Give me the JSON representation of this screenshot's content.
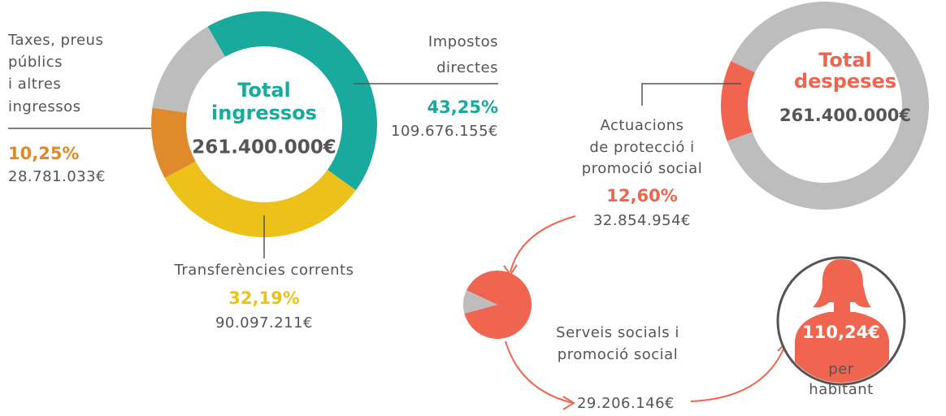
{
  "chart_data": [
    {
      "type": "pie",
      "donut": true,
      "title": [
        "Total",
        "ingressos"
      ],
      "total_label": "261.400.000€",
      "categories": [
        [
          "Impostos",
          "directes"
        ],
        [
          "Transferències corrents"
        ],
        [
          "Taxes, preus",
          "públics",
          "i altres",
          "ingressos"
        ],
        null
      ],
      "values": [
        43.25,
        32.19,
        10.25,
        14.31
      ],
      "value_labels": [
        "43,25%",
        "32,19%",
        "10,25%",
        null
      ],
      "amount_labels": [
        "109.676.155€",
        "90.097.211€",
        "28.781.033€",
        null
      ],
      "colors": [
        "#1aa99d",
        "#ecc21a",
        "#e08a2c",
        "#bdbdbd"
      ]
    },
    {
      "type": "pie",
      "donut": true,
      "title": [
        "Total",
        "despeses"
      ],
      "total_label": "261.400.000€",
      "categories": [
        [
          "Actuacions",
          "de protecció i",
          "promoció social"
        ],
        null
      ],
      "values": [
        12.6,
        87.4
      ],
      "value_labels": [
        "12,60%",
        null
      ],
      "amount_labels": [
        "32.854.954€",
        null
      ],
      "colors": [
        "#f0654f",
        "#bdbdbd"
      ]
    },
    {
      "type": "pie",
      "donut": false,
      "categories": [
        [
          "Serveis socials i",
          "promoció social"
        ],
        null
      ],
      "values": [
        88.9,
        11.1
      ],
      "amount_labels": [
        "29.206.146€",
        null
      ],
      "colors": [
        "#f0654f",
        "#bdbdbd"
      ]
    }
  ],
  "per_capita": {
    "value_label": "110,24€",
    "caption": [
      "per",
      "habitant"
    ]
  }
}
